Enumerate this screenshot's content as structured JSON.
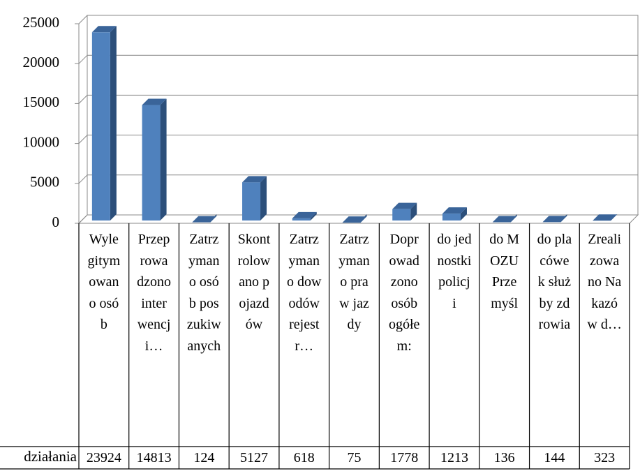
{
  "chart_data": {
    "type": "bar3d",
    "categories": [
      "Wylegitymowano osób",
      "Przeprowadzono interwencji…",
      "Zatrzymano osób poszukiwanych",
      "Skontrolowano pojazdów",
      "Zatrzymano dowodów rejestr…",
      "Zatrzymano praw jazdy",
      "Doprowadzono osób ogółem:",
      "do jednostki policji",
      "do MOZU Przemyśl",
      "do placówek służby zdrowia",
      "Zrealizowano Nakazów d…"
    ],
    "series": [
      {
        "name": "działania",
        "color": "#4f81bd",
        "values": [
          23924,
          14813,
          124,
          5127,
          618,
          75,
          1778,
          1213,
          136,
          144,
          323
        ]
      }
    ],
    "ylim": [
      0,
      25000
    ],
    "yticks": [
      0,
      5000,
      10000,
      15000,
      20000,
      25000
    ],
    "grid": true
  }
}
